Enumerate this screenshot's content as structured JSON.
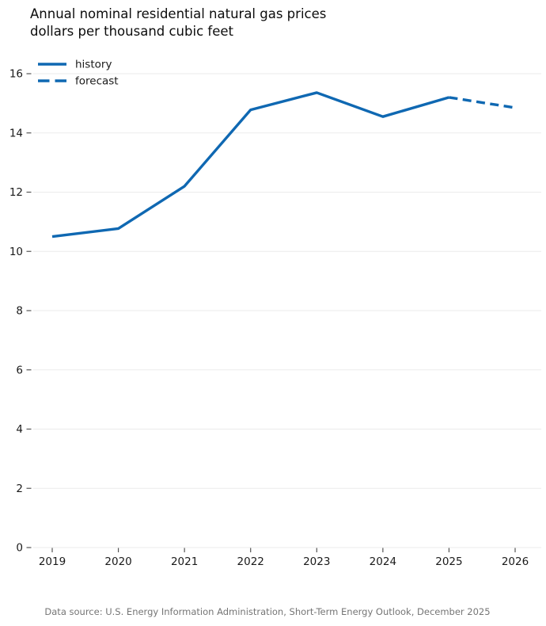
{
  "title": {
    "line1": "Annual nominal residential natural gas prices",
    "line2": "dollars per thousand cubic feet"
  },
  "legend": [
    {
      "label": "history",
      "style": "solid"
    },
    {
      "label": "forecast",
      "style": "dashed"
    }
  ],
  "footer": "Data source: U.S. Energy Information Administration, Short-Term Energy Outlook, December 2025",
  "colors": {
    "series": "#0f68b2",
    "grid": "#ebebeb",
    "tick": "#555555",
    "tick_label": "#1a1a1a",
    "footer_text": "#757575"
  },
  "chart_data": {
    "type": "line",
    "title": "Annual nominal residential natural gas prices",
    "subtitle": "dollars per thousand cubic feet",
    "x": [
      2019,
      2020,
      2021,
      2022,
      2023,
      2024,
      2025,
      2026
    ],
    "xticks": [
      2019,
      2020,
      2021,
      2022,
      2023,
      2024,
      2025,
      2026
    ],
    "series": [
      {
        "name": "history",
        "dash": "solid",
        "x": [
          2019,
          2020,
          2021,
          2022,
          2023,
          2024,
          2025
        ],
        "values": [
          10.5,
          10.77,
          12.2,
          14.78,
          15.36,
          14.55,
          15.2
        ]
      },
      {
        "name": "forecast",
        "dash": "dashed",
        "x": [
          2025,
          2026
        ],
        "values": [
          15.2,
          14.85
        ]
      }
    ],
    "xlabel": "",
    "ylabel": "dollars per thousand cubic feet",
    "ylim": [
      0,
      16
    ],
    "ytick_step": 2,
    "grid": "horizontal",
    "legend_position": "top-left",
    "source_note": "Data source: U.S. Energy Information Administration, Short-Term Energy Outlook, December 2025"
  }
}
